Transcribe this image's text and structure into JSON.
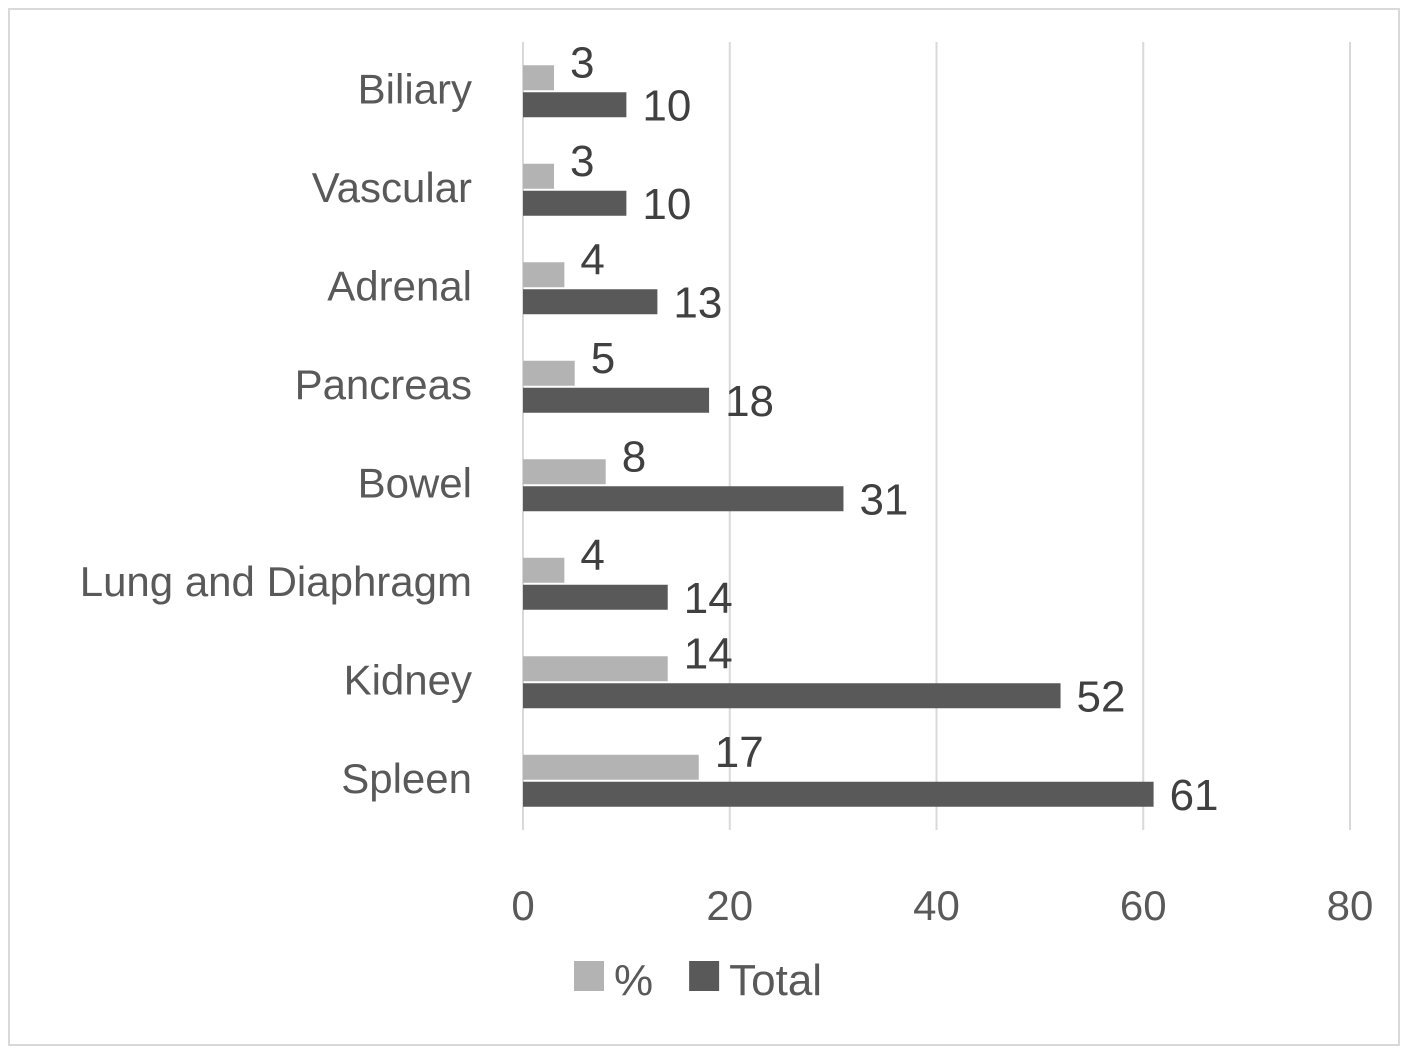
{
  "chart_data": {
    "type": "bar",
    "orientation": "horizontal",
    "categories": [
      "Biliary",
      "Vascular",
      "Adrenal",
      "Pancreas",
      "Bowel",
      "Lung and Diaphragm",
      "Kidney",
      "Spleen"
    ],
    "series": [
      {
        "name": "%",
        "values": [
          3,
          3,
          4,
          5,
          8,
          4,
          14,
          17
        ],
        "color": "#b3b3b3"
      },
      {
        "name": "Total",
        "values": [
          10,
          10,
          13,
          18,
          31,
          14,
          52,
          61
        ],
        "color": "#595959"
      }
    ],
    "xlim": [
      0,
      80
    ],
    "xticks": [
      0,
      20,
      40,
      60,
      80
    ],
    "grid": "vertical",
    "legend": "bottom"
  }
}
